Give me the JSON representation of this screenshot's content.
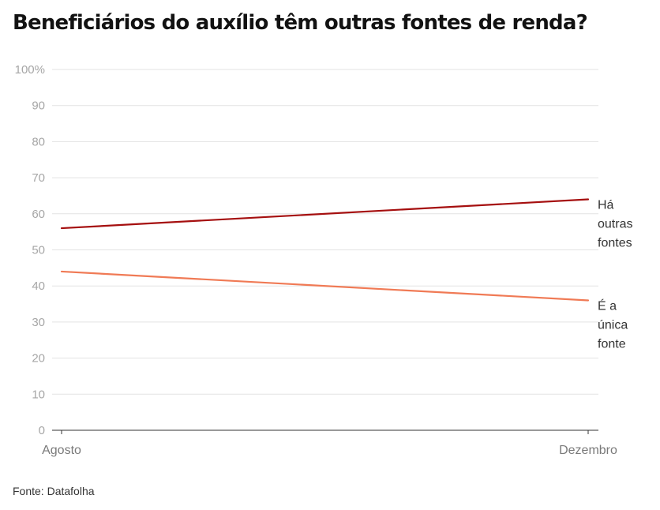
{
  "title": "Beneficiários do auxílio têm outras fontes de renda?",
  "source": "Fonte: Datafolha",
  "chart_data": {
    "type": "line",
    "x": [
      "Agosto",
      "Dezembro"
    ],
    "ylim": [
      0,
      100
    ],
    "yticks": [
      0,
      10,
      20,
      30,
      40,
      50,
      60,
      70,
      80,
      90,
      100
    ],
    "ytick_labels": [
      "0",
      "10",
      "20",
      "30",
      "40",
      "50",
      "60",
      "70",
      "80",
      "90",
      "100%"
    ],
    "grid": true,
    "series": [
      {
        "name": "Há outras fontes",
        "label_lines": [
          "Há",
          "outras",
          "fontes"
        ],
        "values": [
          56,
          64
        ],
        "color": "#a50f0f"
      },
      {
        "name": "É a única fonte",
        "label_lines": [
          "É a",
          "única",
          "fonte"
        ],
        "values": [
          44,
          36
        ],
        "color": "#f07a55"
      }
    ]
  }
}
